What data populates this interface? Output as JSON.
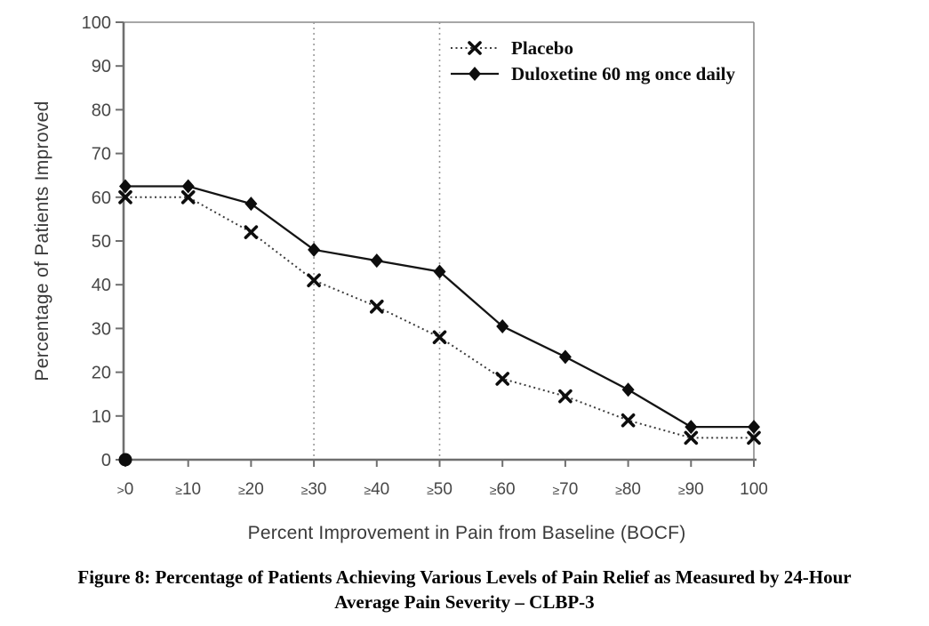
{
  "figure": {
    "caption_line1": "Figure 8: Percentage of Patients Achieving Various Levels of Pain Relief as Measured by 24-Hour",
    "caption_line2": "Average Pain Severity – CLBP-3"
  },
  "chart_data": {
    "type": "line",
    "title": "",
    "xlabel": "Percent Improvement in Pain from Baseline (BOCF)",
    "ylabel": "Percentage of Patients Improved",
    "categories": [
      ">0",
      "≥10",
      "≥20",
      "≥30",
      "≥40",
      "≥50",
      "≥60",
      "≥70",
      "≥80",
      "≥90",
      "100"
    ],
    "y_ticks": [
      0,
      10,
      20,
      30,
      40,
      50,
      60,
      70,
      80,
      90,
      100
    ],
    "ylim": [
      0,
      100
    ],
    "grid": false,
    "legend_position": "top-right-inside",
    "reference_lines_at_categories": [
      "≥30",
      "≥50"
    ],
    "origin_point_marker": true,
    "series": [
      {
        "name": "Placebo",
        "marker": "x",
        "line_style": "dotted",
        "color": "#3c3c3c",
        "values": [
          60,
          60,
          52,
          41,
          35,
          28,
          18.5,
          14.5,
          9,
          5,
          5
        ]
      },
      {
        "name": "Duloxetine 60 mg once daily",
        "marker": "diamond",
        "line_style": "solid",
        "color": "#141414",
        "values": [
          62.5,
          62.5,
          58.5,
          48,
          45.5,
          43,
          30.5,
          23.5,
          16,
          7.5,
          7.5
        ]
      }
    ],
    "colors": {
      "axis": "#6f6f6f",
      "plot_border": "#8a8a8a",
      "tick_label": "#474747",
      "axis_title": "#3a3a3a",
      "reference_line": "#9a9a9a",
      "marker": "#0d0d0d"
    }
  }
}
